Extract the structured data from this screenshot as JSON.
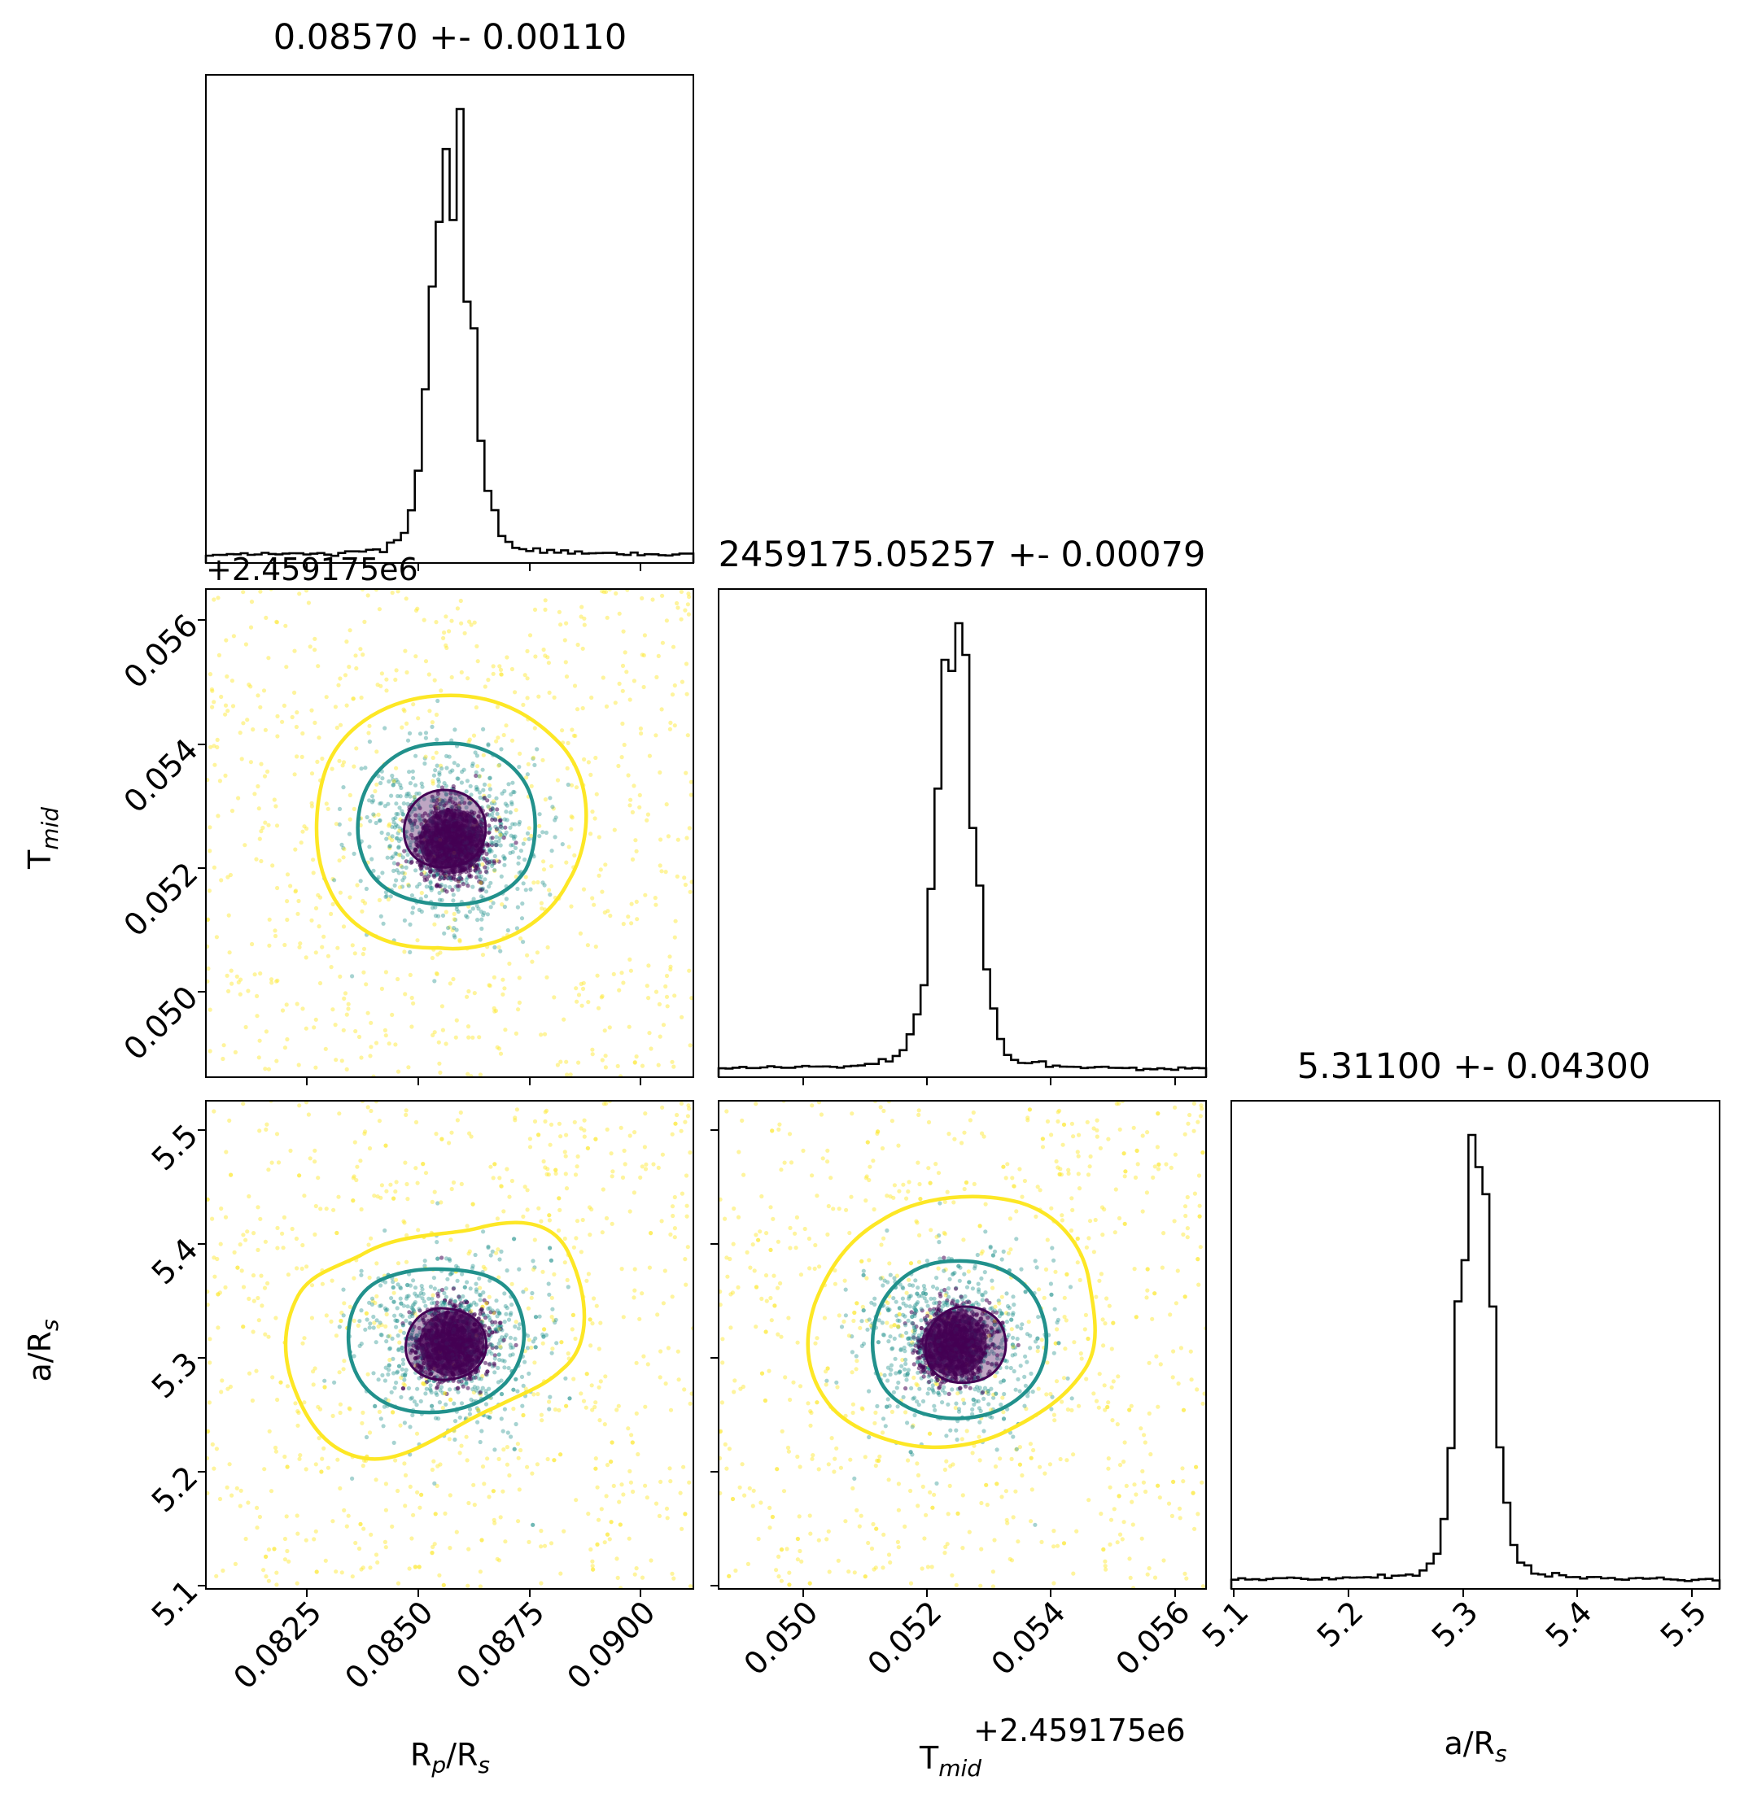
{
  "figure": {
    "type": "corner-plot",
    "colors": {
      "inner_level": "#440154",
      "middle_level": "#21918c",
      "outer_level": "#fde725",
      "axes": "#000000"
    },
    "offset_label": "+2.459175e6"
  },
  "chart_data": [
    {
      "panel": "histogram",
      "parameter": "R_p/R_s",
      "type": "bar",
      "title": "0.08570 +- 0.00110",
      "xlim": [
        0.08018,
        0.09112
      ],
      "x_ticks": [
        "0.0825",
        "0.0850",
        "0.0875",
        "0.0900"
      ],
      "y_ticks": [],
      "grid": false,
      "mean": 0.0857,
      "std": 0.0011
    },
    {
      "panel": "scatter",
      "parameters": [
        "R_p/R_s",
        "T_mid"
      ],
      "type": "scatter",
      "xlim": [
        0.08018,
        0.09112
      ],
      "ylim": [
        0.04883,
        0.05657
      ],
      "y_ticks": [
        "0.050",
        "0.052",
        "0.054",
        "0.056"
      ],
      "y_offset_label": "+2.459175e6",
      "ylabel": "T",
      "ylabel_sub": "mid",
      "center": [
        0.0857,
        0.05257
      ],
      "contour_levels": [
        "inner",
        "middle",
        "outer"
      ]
    },
    {
      "panel": "histogram",
      "parameter": "T_mid",
      "type": "bar",
      "title": "2459175.05257 +- 0.00079",
      "xlim": [
        0.04883,
        0.05657
      ],
      "x_ticks": [
        "0.050",
        "0.052",
        "0.054",
        "0.056"
      ],
      "x_offset_label": "+2.459175e6",
      "xlabel": "T",
      "xlabel_sub": "mid",
      "grid": false,
      "mean": 0.05257,
      "std": 0.00079
    },
    {
      "panel": "scatter",
      "parameters": [
        "R_p/R_s",
        "a/R_s"
      ],
      "type": "scatter",
      "xlim": [
        0.08018,
        0.09112
      ],
      "ylim": [
        5.1,
        5.52
      ],
      "x_ticks": [
        "0.0825",
        "0.0850",
        "0.0875",
        "0.0900"
      ],
      "y_ticks": [
        "5.1",
        "5.2",
        "5.3",
        "5.4",
        "5.5"
      ],
      "xlabel": "R",
      "xlabel_sub": "p",
      "xlabel_tail": "/R",
      "xlabel_sub2": "s",
      "ylabel": "a/R",
      "ylabel_sub": "s",
      "center": [
        0.0857,
        5.311
      ],
      "contour_levels": [
        "inner",
        "middle",
        "outer"
      ]
    },
    {
      "panel": "scatter",
      "parameters": [
        "T_mid",
        "a/R_s"
      ],
      "type": "scatter",
      "xlim": [
        0.04883,
        0.05657
      ],
      "ylim": [
        5.1,
        5.52
      ],
      "x_ticks": [
        "0.050",
        "0.052",
        "0.054",
        "0.056"
      ],
      "center": [
        0.05257,
        5.311
      ],
      "contour_levels": [
        "inner",
        "middle",
        "outer"
      ]
    },
    {
      "panel": "histogram",
      "parameter": "a/R_s",
      "type": "bar",
      "title": "5.31100 +- 0.04300",
      "xlim": [
        5.0976,
        5.5235
      ],
      "x_ticks": [
        "5.1",
        "5.2",
        "5.3",
        "5.4",
        "5.5"
      ],
      "xlabel": "a/R",
      "xlabel_sub": "s",
      "grid": false,
      "mean": 5.311,
      "std": 0.043
    }
  ]
}
